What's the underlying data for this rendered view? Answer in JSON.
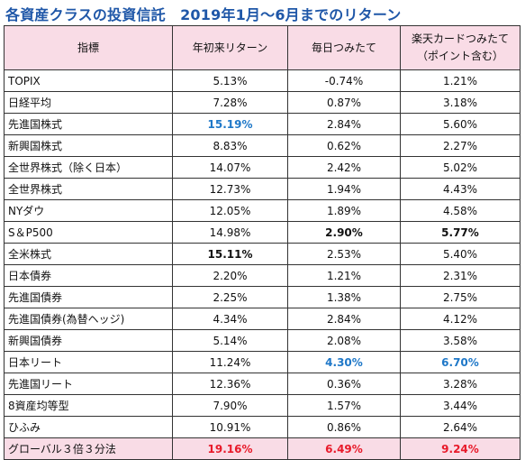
{
  "title": "各資産クラスの投資信託　2019年1月～6月までのリターン",
  "headers": [
    "指標",
    "年初来リターン",
    "毎日つみたて",
    "楽天カードつみたて\n（ポイント含む）"
  ],
  "rows": [
    {
      "name": "TOPIX",
      "ytd": "5.13%",
      "daily": "-0.74%",
      "rakuten": "1.21%"
    },
    {
      "name": "日経平均",
      "ytd": "7.28%",
      "daily": "0.87%",
      "rakuten": "3.18%"
    },
    {
      "name": "先進国株式",
      "ytd": "15.19%",
      "daily": "2.84%",
      "rakuten": "5.60%"
    },
    {
      "name": "新興国株式",
      "ytd": "8.83%",
      "daily": "0.62%",
      "rakuten": "2.27%"
    },
    {
      "name": "全世界株式（除く日本）",
      "ytd": "14.07%",
      "daily": "2.42%",
      "rakuten": "5.02%"
    },
    {
      "name": "全世界株式",
      "ytd": "12.73%",
      "daily": "1.94%",
      "rakuten": "4.43%"
    },
    {
      "name": "NYダウ",
      "ytd": "12.05%",
      "daily": "1.89%",
      "rakuten": "4.58%"
    },
    {
      "name": "S＆P500",
      "ytd": "14.98%",
      "daily": "2.90%",
      "rakuten": "5.77%"
    },
    {
      "name": "全米株式",
      "ytd": "15.11%",
      "daily": "2.53%",
      "rakuten": "5.40%"
    },
    {
      "name": "日本債券",
      "ytd": "2.20%",
      "daily": "1.21%",
      "rakuten": "2.31%"
    },
    {
      "name": "先進国債券",
      "ytd": "2.25%",
      "daily": "1.38%",
      "rakuten": "2.75%"
    },
    {
      "name": "先進国債券(為替ヘッジ)",
      "ytd": "4.34%",
      "daily": "2.84%",
      "rakuten": "4.12%"
    },
    {
      "name": "新興国債券",
      "ytd": "5.14%",
      "daily": "2.08%",
      "rakuten": "3.58%"
    },
    {
      "name": "日本リート",
      "ytd": "11.24%",
      "daily": "4.30%",
      "rakuten": "6.70%"
    },
    {
      "name": "先進国リート",
      "ytd": "12.36%",
      "daily": "0.36%",
      "rakuten": "3.28%"
    },
    {
      "name": "8資産均等型",
      "ytd": "7.90%",
      "daily": "1.57%",
      "rakuten": "3.44%"
    },
    {
      "name": "ひふみ",
      "ytd": "10.91%",
      "daily": "0.86%",
      "rakuten": "2.64%"
    },
    {
      "name": "グローバル３倍３分法",
      "ytd": "19.16%",
      "daily": "6.49%",
      "rakuten": "9.24%"
    }
  ],
  "colors": {
    "title": "#1f57a8",
    "header_bg": "#f9dce6",
    "blue": "#1f78c8",
    "red": "#e81a2a"
  }
}
